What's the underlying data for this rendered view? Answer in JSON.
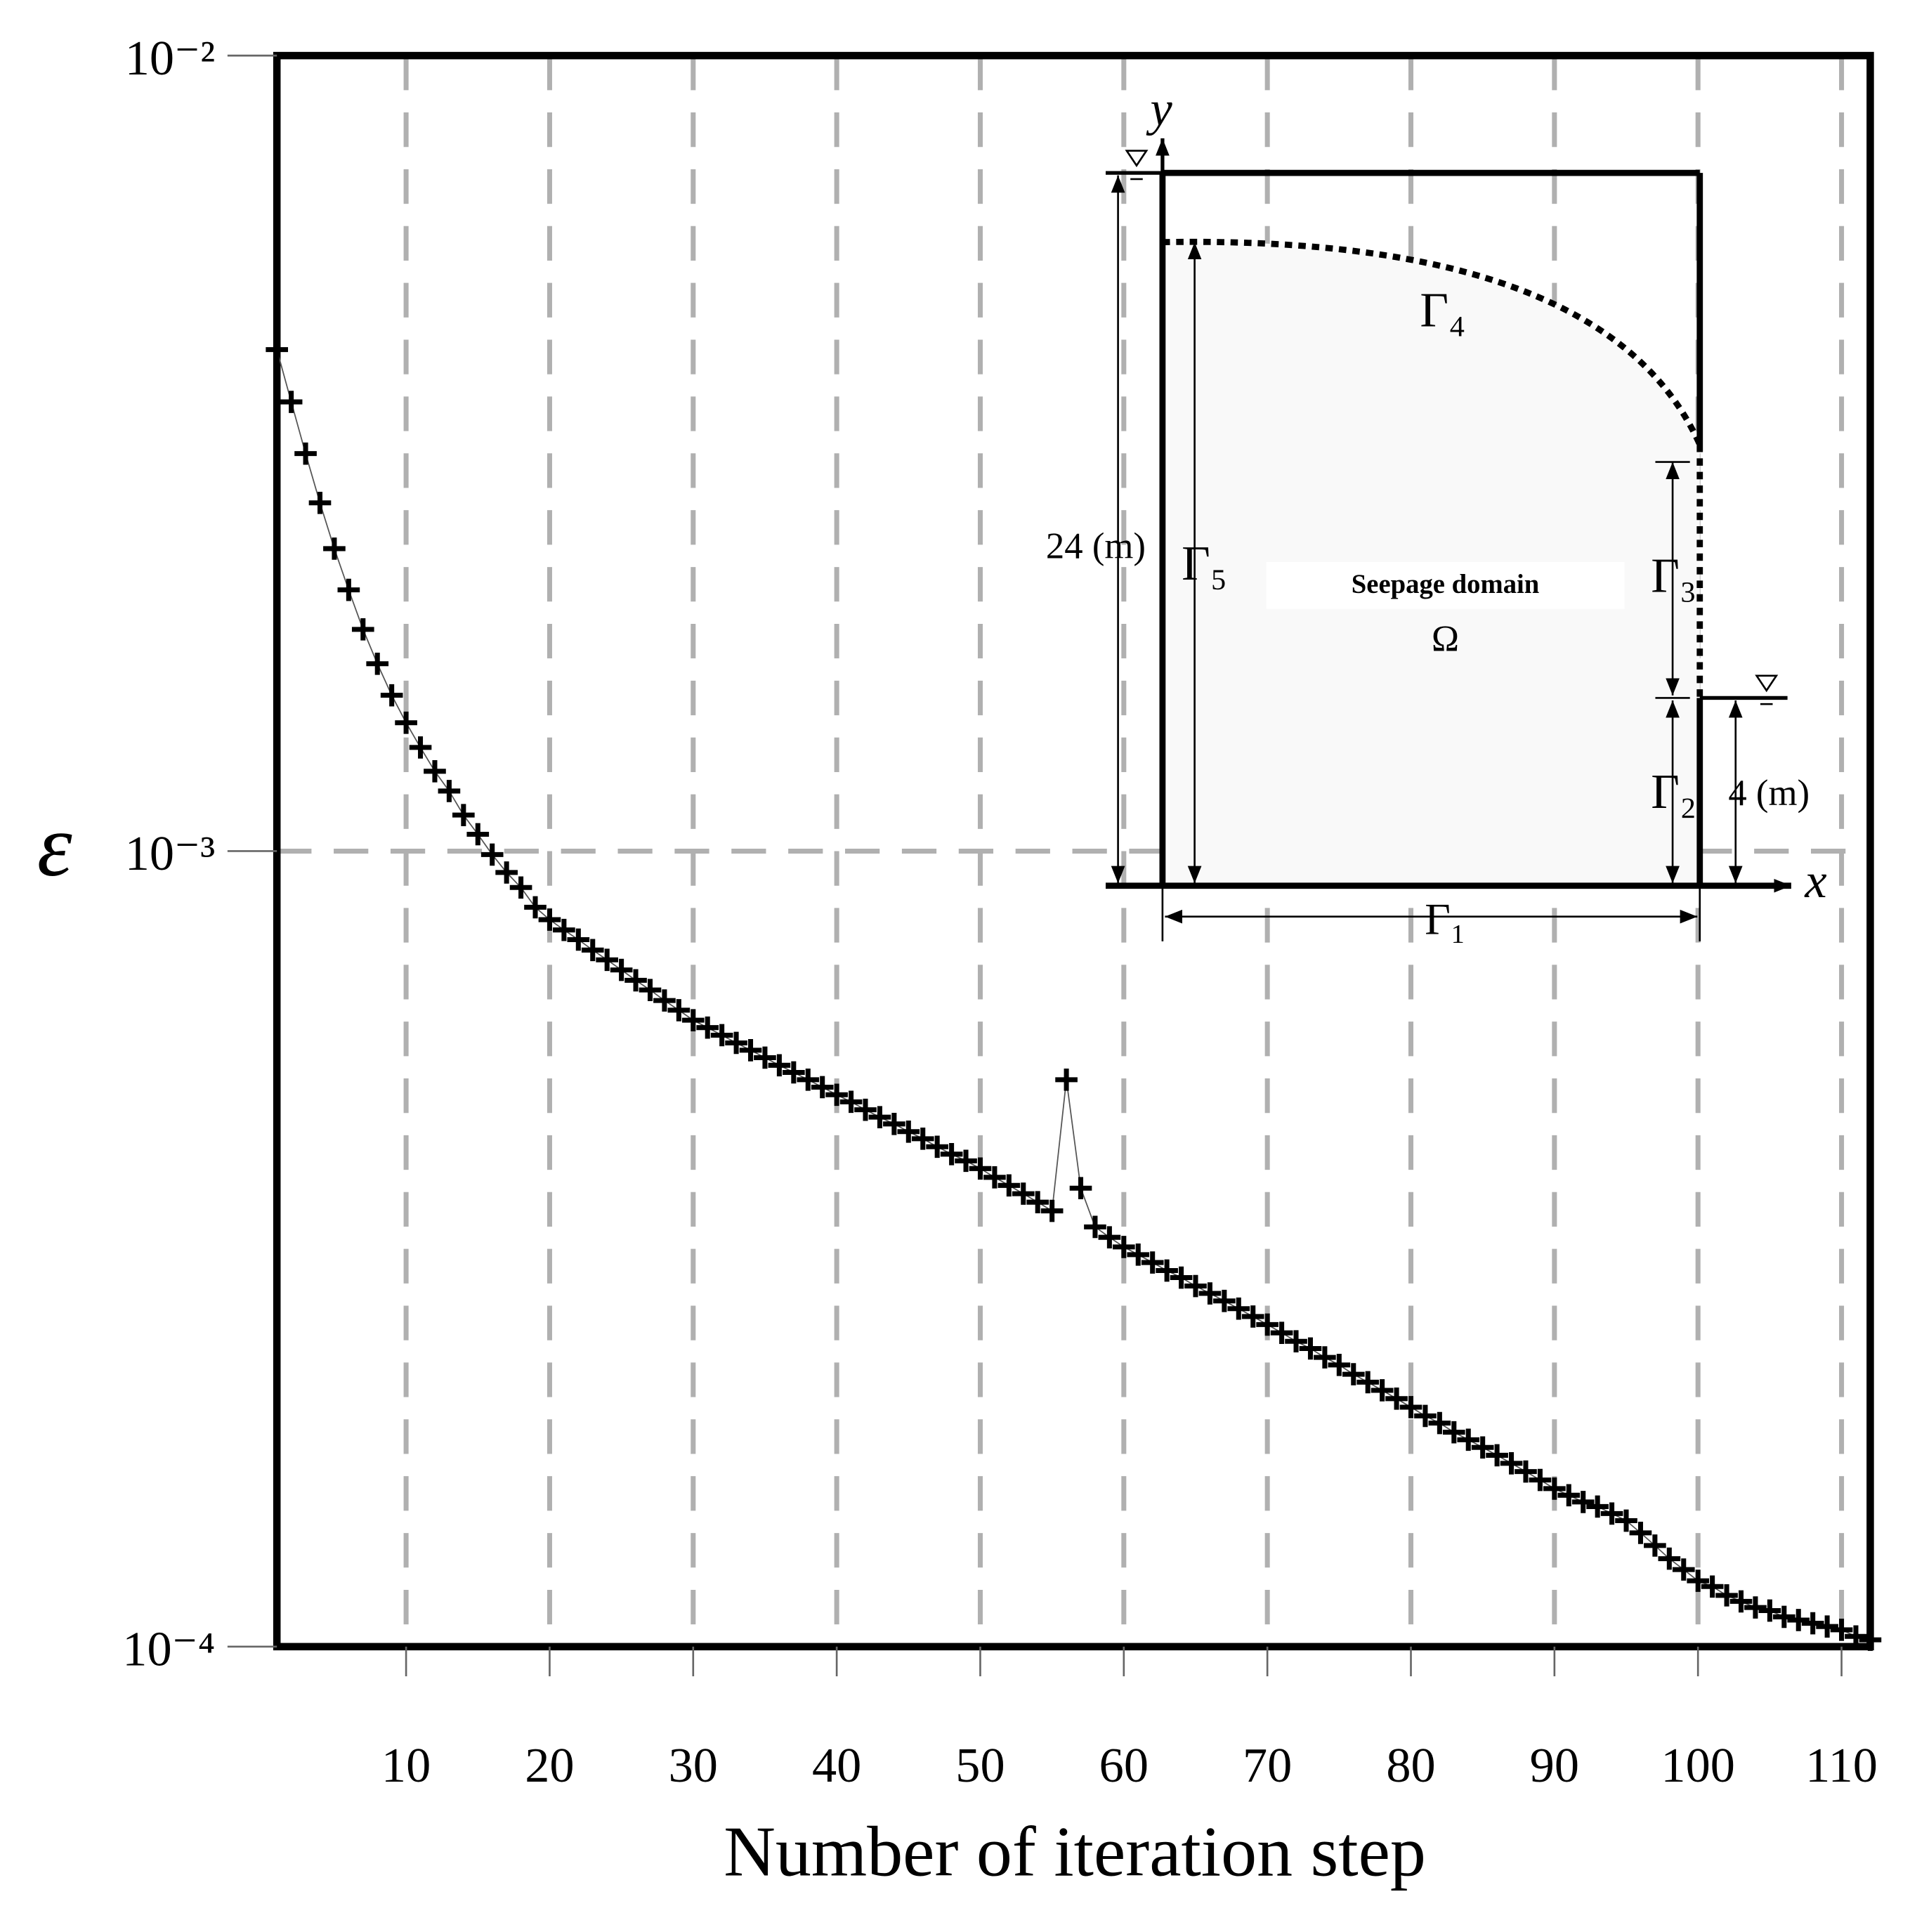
{
  "chart_data": {
    "type": "scatter",
    "x_label": "Number of iteration step",
    "y_label": "ε",
    "log_y": true,
    "grid": true,
    "color": "#000000",
    "xlim": [
      1,
      112
    ],
    "ylim": [
      0.0001,
      0.01
    ],
    "xticks": [
      10,
      20,
      30,
      40,
      50,
      60,
      70,
      80,
      90,
      100,
      110
    ],
    "yticks": [
      {
        "value": 0.0001,
        "label": "10⁻⁴"
      },
      {
        "value": 0.001,
        "label": "10⁻³"
      },
      {
        "value": 0.01,
        "label": "10⁻²"
      }
    ],
    "x": [
      1,
      2,
      3,
      4,
      5,
      6,
      7,
      8,
      9,
      10,
      11,
      12,
      13,
      14,
      15,
      16,
      17,
      18,
      19,
      20,
      21,
      22,
      23,
      24,
      25,
      26,
      27,
      28,
      29,
      30,
      31,
      32,
      33,
      34,
      35,
      36,
      37,
      38,
      39,
      40,
      41,
      42,
      43,
      44,
      45,
      46,
      47,
      48,
      49,
      50,
      51,
      52,
      53,
      54,
      55,
      56,
      57,
      58,
      59,
      60,
      61,
      62,
      63,
      64,
      65,
      66,
      67,
      68,
      69,
      70,
      71,
      72,
      73,
      74,
      75,
      76,
      77,
      78,
      79,
      80,
      81,
      82,
      83,
      84,
      85,
      86,
      87,
      88,
      89,
      90,
      91,
      92,
      93,
      94,
      95,
      96,
      97,
      98,
      99,
      100,
      101,
      102,
      103,
      104,
      105,
      106,
      107,
      108,
      109,
      110,
      111,
      112
    ],
    "values": [
      0.00427,
      0.00367,
      0.00316,
      0.00274,
      0.0024,
      0.00213,
      0.0019,
      0.00172,
      0.00157,
      0.00145,
      0.00135,
      0.00126,
      0.00119,
      0.00111,
      0.00105,
      0.00099,
      0.00094,
      0.0009,
      0.00085,
      0.00082,
      0.000796,
      0.000774,
      0.000751,
      0.00073,
      0.000709,
      0.000688,
      0.000669,
      0.000649,
      0.000631,
      0.000613,
      0.0006,
      0.000587,
      0.000574,
      0.000562,
      0.00055,
      0.000538,
      0.000527,
      0.000516,
      0.000505,
      0.000494,
      0.000484,
      0.000473,
      0.000463,
      0.000454,
      0.000444,
      0.000435,
      0.000425,
      0.000416,
      0.000408,
      0.000399,
      0.000389,
      0.00038,
      0.000371,
      0.000362,
      0.000353,
      0.000516,
      0.000377,
      0.000337,
      0.000327,
      0.000318,
      0.000311,
      0.000304,
      0.000297,
      0.000291,
      0.000284,
      0.000278,
      0.000272,
      0.000266,
      0.00026,
      0.000254,
      0.000248,
      0.000242,
      0.000237,
      0.000231,
      0.000226,
      0.00022,
      0.000215,
      0.00021,
      0.000205,
      0.0002,
      0.000195,
      0.000191,
      0.000186,
      0.000182,
      0.000178,
      0.000174,
      0.00017,
      0.000166,
      0.000162,
      0.000158,
      0.000155,
      0.000152,
      0.00015,
      0.000147,
      0.000144,
      0.000139,
      0.000134,
      0.000129,
      0.000125,
      0.000121,
      0.000119,
      0.000116,
      0.000114,
      0.000112,
      0.000111,
      0.000109,
      0.000108,
      0.000107,
      0.000106,
      0.000105,
      0.000103,
      0.000102
    ],
    "inset_labels": {
      "y_axis": "y",
      "x_axis": "x",
      "height": "24 (m)",
      "tailwater": "4 (m)",
      "gamma1": "Γ₁",
      "gamma2": "Γ₂",
      "gamma3": "Γ₃",
      "gamma4": "Γ₄",
      "gamma5": "Γ₅",
      "domain": "Seepage domain",
      "omega": "Ω"
    }
  }
}
